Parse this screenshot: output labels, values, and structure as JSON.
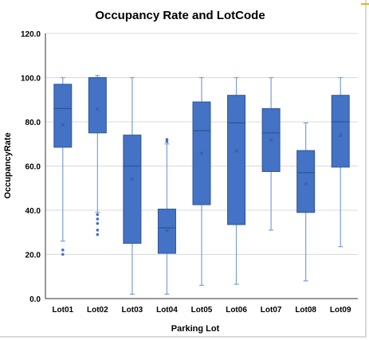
{
  "chart_data": {
    "type": "box",
    "title": "Occupancy Rate and LotCode",
    "xlabel": "Parking Lot",
    "ylabel": "OccupancyRate",
    "ylim": [
      0,
      120
    ],
    "yticks": [
      "0.0",
      "20.0",
      "40.0",
      "60.0",
      "80.0",
      "100.0",
      "120.0"
    ],
    "grid": true,
    "categories": [
      "Lot01",
      "Lot02",
      "Lot03",
      "Lot04",
      "Lot05",
      "Lot06",
      "Lot07",
      "Lot08",
      "Lot09"
    ],
    "boxes": [
      {
        "category": "Lot01",
        "min": 26,
        "q1": 68.5,
        "median": 86,
        "q3": 97,
        "max": 100,
        "mean": 79,
        "outliers": [
          20,
          22
        ]
      },
      {
        "category": "Lot02",
        "min": 39,
        "q1": 75,
        "median": 100,
        "q3": 100,
        "max": 101,
        "mean": 86,
        "outliers": [
          29,
          31,
          34,
          36,
          38
        ]
      },
      {
        "category": "Lot03",
        "min": 2,
        "q1": 25,
        "median": 60,
        "q3": 74,
        "max": 100,
        "mean": 54,
        "outliers": []
      },
      {
        "category": "Lot04",
        "min": 2,
        "q1": 20.5,
        "median": 32,
        "q3": 40.5,
        "max": 70,
        "mean": 31,
        "outliers": [
          71,
          72
        ]
      },
      {
        "category": "Lot05",
        "min": 6,
        "q1": 42.5,
        "median": 76,
        "q3": 89,
        "max": 100,
        "mean": 66,
        "outliers": []
      },
      {
        "category": "Lot06",
        "min": 6.5,
        "q1": 33.5,
        "median": 79.5,
        "q3": 92,
        "max": 100,
        "mean": 67,
        "outliers": []
      },
      {
        "category": "Lot07",
        "min": 31,
        "q1": 57.5,
        "median": 75,
        "q3": 86,
        "max": 100,
        "mean": 72,
        "outliers": []
      },
      {
        "category": "Lot08",
        "min": 8,
        "q1": 39,
        "median": 57,
        "q3": 67,
        "max": 79.5,
        "mean": 52,
        "outliers": []
      },
      {
        "category": "Lot09",
        "min": 23.5,
        "q1": 59.5,
        "median": 80,
        "q3": 92,
        "max": 100,
        "mean": 74,
        "outliers": []
      }
    ],
    "colors": {
      "box_fill": "#4472c4",
      "box_edge": "#2f5597",
      "whisker": "#7a9fd6",
      "median": "#2f5597",
      "outlier": "#4472c4",
      "grid": "#d9d9d9",
      "axis": "#333333"
    }
  }
}
